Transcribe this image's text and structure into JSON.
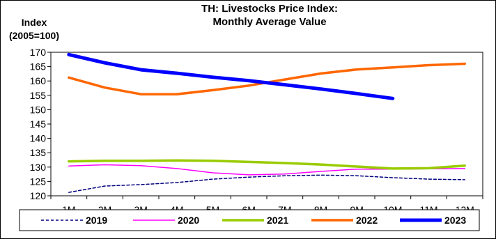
{
  "chart_data": {
    "type": "line",
    "title": "TH: Livestocks Price Index:",
    "subtitle": "Monthly Average Value",
    "ylabel": "Index",
    "ylabel_line2": "(2005=100)",
    "xlabel": "",
    "categories": [
      "1M",
      "2M",
      "3M",
      "4M",
      "5M",
      "6M",
      "7M",
      "8M",
      "9M",
      "10M",
      "11M",
      "12M"
    ],
    "ylim": [
      120,
      170
    ],
    "yticks": [
      120,
      125,
      130,
      135,
      140,
      145,
      150,
      155,
      160,
      165,
      170
    ],
    "grid": false,
    "legend_position": "bottom",
    "series": [
      {
        "name": "2019",
        "color": "#000080",
        "style": "dashed",
        "values": [
          121.2,
          123.4,
          123.9,
          124.6,
          125.8,
          126.5,
          127.0,
          127.2,
          127.0,
          126.3,
          125.8,
          125.6
        ]
      },
      {
        "name": "2020",
        "color": "#FF00FF",
        "style": "solid",
        "values": [
          130.4,
          130.8,
          130.5,
          129.5,
          128.0,
          127.3,
          127.6,
          128.5,
          129.3,
          129.3,
          129.4,
          129.5
        ]
      },
      {
        "name": "2021",
        "color": "#99CC00",
        "style": "solid",
        "values": [
          132.0,
          132.2,
          132.2,
          132.3,
          132.2,
          131.8,
          131.4,
          130.9,
          130.2,
          129.5,
          129.6,
          130.5
        ]
      },
      {
        "name": "2022",
        "color": "#FF6600",
        "style": "solid",
        "values": [
          161.2,
          157.7,
          155.4,
          155.4,
          156.8,
          158.4,
          160.5,
          162.6,
          164.0,
          164.7,
          165.5,
          166.0
        ]
      },
      {
        "name": "2023",
        "color": "#0000FF",
        "style": "solid",
        "values": [
          169.2,
          166.3,
          163.9,
          162.7,
          161.3,
          160.1,
          158.7,
          157.2,
          155.6,
          153.9,
          null,
          null
        ]
      }
    ]
  }
}
